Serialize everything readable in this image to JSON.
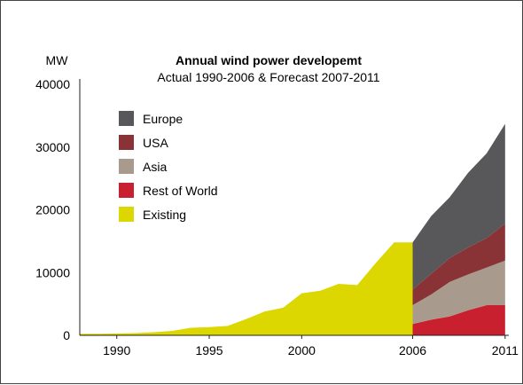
{
  "chart_data": {
    "type": "area",
    "title": "Annual wind power developemt",
    "subtitle": "Actual 1990-2006 & Forecast 2007-2011",
    "ylabel": "MW",
    "xlabel": "",
    "x_ticks": [
      1990,
      1995,
      2000,
      2006,
      2011
    ],
    "y_ticks": [
      "0",
      "10000",
      "20000",
      "30000",
      "40000"
    ],
    "ylim": [
      0,
      40000
    ],
    "xlim": [
      1988,
      2011.2
    ],
    "legend_position": "upper-left",
    "existing": {
      "name": "Existing",
      "color": "#dcd700",
      "x": [
        1988,
        1989,
        1990,
        1991,
        1992,
        1993,
        1994,
        1995,
        1996,
        1997,
        1998,
        1999,
        2000,
        2001,
        2002,
        2003,
        2004,
        2005,
        2006
      ],
      "y": [
        250,
        250,
        300,
        350,
        500,
        700,
        1200,
        1300,
        1500,
        2600,
        3800,
        4400,
        6700,
        7100,
        8200,
        8000,
        11500,
        14800,
        14800
      ]
    },
    "forecast": {
      "x": [
        2006,
        2007,
        2008,
        2009,
        2010,
        2011
      ],
      "series": [
        {
          "name": "Rest of World",
          "color": "#c8202f",
          "values": [
            1800,
            2500,
            3000,
            4000,
            4800,
            4800
          ]
        },
        {
          "name": "Asia",
          "color": "#a89a8c",
          "values": [
            3000,
            4000,
            5500,
            5700,
            6000,
            7100
          ]
        },
        {
          "name": "USA",
          "color": "#8a3336",
          "values": [
            2500,
            3300,
            3800,
            4300,
            4700,
            5900
          ]
        },
        {
          "name": "Europe",
          "color": "#58585a",
          "values": [
            7500,
            9200,
            9700,
            11900,
            13500,
            15900
          ]
        }
      ]
    },
    "legend": [
      {
        "name": "Europe",
        "color": "#58585a"
      },
      {
        "name": "USA",
        "color": "#8a3336"
      },
      {
        "name": "Asia",
        "color": "#a89a8c"
      },
      {
        "name": "Rest of World",
        "color": "#c8202f"
      },
      {
        "name": "Existing",
        "color": "#dcd700"
      }
    ]
  }
}
